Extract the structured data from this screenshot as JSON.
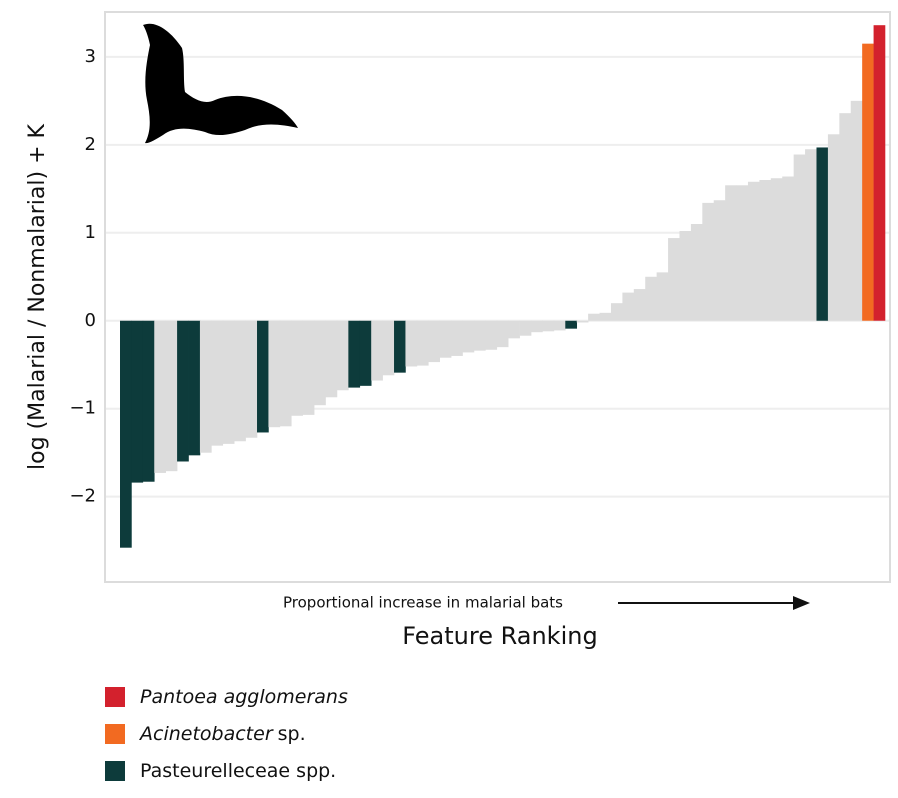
{
  "chart_data": {
    "type": "bar",
    "y_label": "log (Malarial / Nonmalarial) + K",
    "x_label": "Feature Ranking",
    "annotation": "Proportional increase in malarial bats",
    "values": [
      -2.58,
      -1.84,
      -1.83,
      -1.73,
      -1.71,
      -1.6,
      -1.53,
      -1.5,
      -1.42,
      -1.4,
      -1.37,
      -1.33,
      -1.27,
      -1.21,
      -1.2,
      -1.08,
      -1.07,
      -0.96,
      -0.87,
      -0.79,
      -0.76,
      -0.74,
      -0.68,
      -0.62,
      -0.59,
      -0.52,
      -0.51,
      -0.47,
      -0.42,
      -0.4,
      -0.36,
      -0.34,
      -0.33,
      -0.3,
      -0.2,
      -0.17,
      -0.13,
      -0.12,
      -0.11,
      -0.09,
      -0.02,
      0.08,
      0.09,
      0.2,
      0.32,
      0.36,
      0.5,
      0.55,
      0.94,
      1.02,
      1.1,
      1.34,
      1.37,
      1.54,
      1.54,
      1.58,
      1.6,
      1.62,
      1.64,
      1.89,
      1.95,
      1.97,
      2.12,
      2.36,
      2.5,
      3.15,
      3.36
    ],
    "colors": [
      "#0d3b3b",
      "#0d3b3b",
      "#0d3b3b",
      "#dcdcdc",
      "#dcdcdc",
      "#0d3b3b",
      "#0d3b3b",
      "#dcdcdc",
      "#dcdcdc",
      "#dcdcdc",
      "#dcdcdc",
      "#dcdcdc",
      "#0d3b3b",
      "#dcdcdc",
      "#dcdcdc",
      "#dcdcdc",
      "#dcdcdc",
      "#dcdcdc",
      "#dcdcdc",
      "#dcdcdc",
      "#0d3b3b",
      "#0d3b3b",
      "#dcdcdc",
      "#dcdcdc",
      "#0d3b3b",
      "#dcdcdc",
      "#dcdcdc",
      "#dcdcdc",
      "#dcdcdc",
      "#dcdcdc",
      "#dcdcdc",
      "#dcdcdc",
      "#dcdcdc",
      "#dcdcdc",
      "#dcdcdc",
      "#dcdcdc",
      "#dcdcdc",
      "#dcdcdc",
      "#dcdcdc",
      "#0d3b3b",
      "#dcdcdc",
      "#dcdcdc",
      "#dcdcdc",
      "#dcdcdc",
      "#dcdcdc",
      "#dcdcdc",
      "#dcdcdc",
      "#dcdcdc",
      "#dcdcdc",
      "#dcdcdc",
      "#dcdcdc",
      "#dcdcdc",
      "#dcdcdc",
      "#dcdcdc",
      "#dcdcdc",
      "#dcdcdc",
      "#dcdcdc",
      "#dcdcdc",
      "#dcdcdc",
      "#dcdcdc",
      "#dcdcdc",
      "#0d3b3b",
      "#dcdcdc",
      "#dcdcdc",
      "#dcdcdc",
      "#f26a21",
      "#d3212d"
    ],
    "ylim": [
      -2.97,
      3.51
    ],
    "yticks": [
      {
        "value": -2,
        "label": "−2"
      },
      {
        "value": -1,
        "label": "−1"
      },
      0,
      1,
      2,
      3
    ],
    "grid": true,
    "legend": [
      {
        "italic": "Pantoea agglomerans",
        "color": "#d3212d"
      },
      {
        "italic": "Acinetobacter",
        "text": "sp.",
        "color": "#f26a21"
      },
      {
        "text": "Pasteurelleceae spp.",
        "color": "#0d3b3b"
      }
    ]
  }
}
